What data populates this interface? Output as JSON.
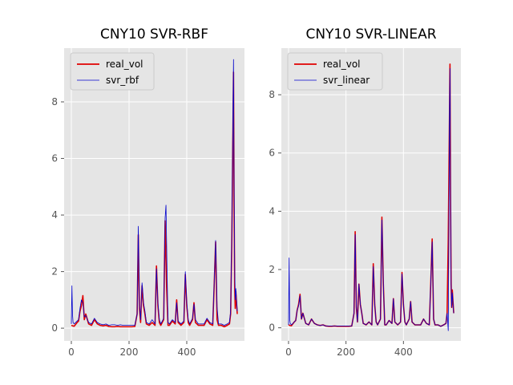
{
  "colors": {
    "background": "#e5e5e5",
    "grid": "#ffffff",
    "real_vol": "#e00000",
    "prediction": "#0000cc",
    "legend_bg": "#e5e5e5",
    "legend_border": "#cccccc",
    "tick_text": "#555555"
  },
  "chart_data": [
    {
      "type": "line",
      "title": "CNY10 SVR-RBF",
      "xlabel": "",
      "ylabel": "",
      "xlim": [
        -25,
        600
      ],
      "ylim": [
        -0.45,
        9.9
      ],
      "xticks": [
        0,
        200,
        400
      ],
      "yticks": [
        0,
        2,
        4,
        6,
        8
      ],
      "grid": true,
      "legend_position": "top-left",
      "series": [
        {
          "name": "real_vol",
          "color": "#e00000",
          "x": [
            0,
            5,
            10,
            20,
            25,
            30,
            35,
            40,
            45,
            50,
            60,
            70,
            80,
            90,
            100,
            110,
            120,
            130,
            140,
            150,
            160,
            170,
            180,
            190,
            200,
            210,
            220,
            228,
            232,
            236,
            240,
            245,
            250,
            255,
            260,
            270,
            280,
            290,
            295,
            300,
            305,
            310,
            320,
            325,
            330,
            335,
            340,
            350,
            360,
            365,
            370,
            380,
            390,
            395,
            400,
            405,
            410,
            420,
            425,
            430,
            440,
            450,
            460,
            470,
            480,
            490,
            495,
            500,
            505,
            510,
            520,
            530,
            540,
            548,
            552,
            556,
            560,
            562,
            564,
            566,
            568,
            570,
            575
          ],
          "y": [
            0.1,
            0.08,
            0.07,
            0.2,
            0.25,
            0.6,
            0.8,
            1.15,
            0.3,
            0.5,
            0.15,
            0.1,
            0.3,
            0.15,
            0.1,
            0.08,
            0.1,
            0.06,
            0.05,
            0.05,
            0.06,
            0.05,
            0.05,
            0.05,
            0.05,
            0.05,
            0.06,
            0.5,
            3.3,
            0.7,
            0.2,
            1.5,
            0.8,
            0.5,
            0.15,
            0.1,
            0.2,
            0.1,
            2.2,
            0.8,
            0.2,
            0.1,
            0.3,
            3.8,
            1.5,
            0.1,
            0.1,
            0.25,
            0.15,
            1.0,
            0.2,
            0.1,
            0.2,
            1.9,
            0.8,
            0.2,
            0.1,
            0.3,
            0.9,
            0.2,
            0.1,
            0.1,
            0.1,
            0.3,
            0.15,
            0.1,
            1.5,
            3.05,
            0.3,
            0.1,
            0.1,
            0.05,
            0.1,
            0.15,
            0.5,
            3.0,
            7.0,
            9.05,
            4.5,
            1.5,
            0.7,
            1.3,
            0.5
          ]
        },
        {
          "name": "svr_rbf",
          "color": "#0000cc",
          "x": [
            0,
            2,
            4,
            6,
            10,
            20,
            25,
            30,
            35,
            40,
            45,
            50,
            60,
            70,
            80,
            90,
            100,
            110,
            120,
            130,
            140,
            150,
            160,
            170,
            180,
            190,
            200,
            210,
            220,
            228,
            232,
            236,
            240,
            245,
            250,
            255,
            260,
            270,
            280,
            290,
            295,
            300,
            305,
            310,
            320,
            325,
            328,
            332,
            335,
            340,
            350,
            360,
            365,
            370,
            380,
            390,
            395,
            400,
            405,
            410,
            420,
            425,
            430,
            440,
            450,
            460,
            470,
            480,
            490,
            495,
            500,
            505,
            510,
            520,
            530,
            540,
            548,
            552,
            556,
            560,
            562,
            564,
            566,
            568,
            570,
            575
          ],
          "y": [
            0.15,
            1.5,
            0.5,
            0.2,
            0.15,
            0.25,
            0.3,
            0.7,
            1.0,
            0.9,
            0.4,
            0.45,
            0.2,
            0.15,
            0.35,
            0.2,
            0.15,
            0.12,
            0.15,
            0.1,
            0.12,
            0.12,
            0.1,
            0.12,
            0.1,
            0.1,
            0.1,
            0.1,
            0.1,
            0.5,
            3.6,
            0.8,
            0.3,
            1.6,
            0.9,
            0.6,
            0.2,
            0.15,
            0.3,
            0.15,
            2.1,
            0.9,
            0.3,
            0.15,
            0.35,
            3.9,
            4.35,
            1.8,
            0.2,
            0.15,
            0.3,
            0.2,
            0.9,
            0.25,
            0.15,
            0.25,
            2.0,
            0.9,
            0.3,
            0.15,
            0.35,
            0.85,
            0.3,
            0.15,
            0.15,
            0.15,
            0.35,
            0.2,
            0.15,
            1.6,
            3.1,
            0.75,
            0.15,
            0.15,
            0.1,
            0.15,
            0.2,
            0.6,
            3.2,
            7.5,
            9.5,
            5.0,
            2.2,
            1.0,
            1.4,
            0.6
          ]
        }
      ]
    },
    {
      "type": "line",
      "title": "CNY10 SVR-LINEAR",
      "xlabel": "",
      "ylabel": "",
      "xlim": [
        -25,
        600
      ],
      "ylim": [
        -0.45,
        9.6
      ],
      "xticks": [
        0,
        200,
        400
      ],
      "yticks": [
        0,
        2,
        4,
        6,
        8
      ],
      "grid": true,
      "legend_position": "top-left",
      "series": [
        {
          "name": "real_vol",
          "color": "#e00000",
          "x": [
            0,
            5,
            10,
            20,
            25,
            30,
            35,
            40,
            45,
            50,
            60,
            70,
            80,
            90,
            100,
            110,
            120,
            130,
            140,
            150,
            160,
            170,
            180,
            190,
            200,
            210,
            220,
            228,
            232,
            236,
            240,
            245,
            250,
            255,
            260,
            270,
            280,
            290,
            295,
            300,
            305,
            310,
            320,
            325,
            330,
            335,
            340,
            350,
            360,
            365,
            370,
            380,
            390,
            395,
            400,
            405,
            410,
            420,
            425,
            430,
            440,
            450,
            460,
            470,
            480,
            490,
            495,
            500,
            505,
            510,
            520,
            530,
            540,
            548,
            552,
            556,
            560,
            562,
            564,
            566,
            568,
            570,
            575
          ],
          "y": [
            0.1,
            0.08,
            0.07,
            0.2,
            0.25,
            0.6,
            0.8,
            1.15,
            0.3,
            0.5,
            0.15,
            0.1,
            0.3,
            0.15,
            0.1,
            0.08,
            0.1,
            0.06,
            0.05,
            0.05,
            0.06,
            0.05,
            0.05,
            0.05,
            0.05,
            0.05,
            0.06,
            0.5,
            3.3,
            0.7,
            0.2,
            1.5,
            0.8,
            0.5,
            0.15,
            0.1,
            0.2,
            0.1,
            2.2,
            0.8,
            0.2,
            0.1,
            0.3,
            3.8,
            1.5,
            0.1,
            0.1,
            0.25,
            0.15,
            1.0,
            0.2,
            0.1,
            0.2,
            1.9,
            0.8,
            0.2,
            0.1,
            0.3,
            0.9,
            0.2,
            0.1,
            0.1,
            0.1,
            0.3,
            0.15,
            0.1,
            1.5,
            3.05,
            0.3,
            0.1,
            0.1,
            0.05,
            0.1,
            0.15,
            0.5,
            3.0,
            7.0,
            9.05,
            4.5,
            1.5,
            0.7,
            1.3,
            0.5
          ]
        },
        {
          "name": "svr_linear",
          "color": "#0000cc",
          "x": [
            0,
            2,
            4,
            6,
            10,
            20,
            25,
            30,
            35,
            40,
            45,
            50,
            60,
            70,
            80,
            90,
            100,
            110,
            120,
            130,
            140,
            150,
            160,
            170,
            180,
            190,
            200,
            210,
            220,
            228,
            232,
            236,
            240,
            245,
            250,
            255,
            260,
            270,
            280,
            290,
            295,
            300,
            305,
            310,
            320,
            325,
            330,
            335,
            340,
            350,
            360,
            365,
            370,
            380,
            390,
            395,
            400,
            405,
            410,
            420,
            425,
            430,
            440,
            450,
            460,
            470,
            480,
            490,
            495,
            500,
            505,
            510,
            520,
            530,
            540,
            548,
            552,
            556,
            558,
            560,
            562,
            564,
            566,
            568,
            570,
            575
          ],
          "y": [
            0.1,
            2.4,
            0.3,
            0.15,
            0.1,
            0.2,
            0.25,
            0.6,
            0.75,
            1.1,
            0.3,
            0.5,
            0.15,
            0.1,
            0.3,
            0.15,
            0.1,
            0.08,
            0.1,
            0.06,
            0.06,
            0.06,
            0.06,
            0.06,
            0.06,
            0.06,
            0.06,
            0.06,
            0.06,
            0.5,
            3.2,
            0.7,
            0.2,
            1.5,
            0.8,
            0.5,
            0.15,
            0.1,
            0.2,
            0.1,
            2.1,
            0.8,
            0.2,
            0.1,
            0.3,
            3.7,
            1.5,
            0.1,
            0.1,
            0.25,
            0.15,
            1.0,
            0.2,
            0.1,
            0.2,
            1.85,
            0.8,
            0.2,
            0.1,
            0.3,
            0.9,
            0.2,
            0.1,
            0.1,
            0.1,
            0.3,
            0.15,
            0.1,
            1.5,
            2.95,
            0.3,
            0.1,
            0.1,
            0.05,
            0.1,
            0.15,
            0.5,
            -0.1,
            3.0,
            6.9,
            8.9,
            4.4,
            1.5,
            0.7,
            1.2,
            0.5
          ]
        }
      ]
    }
  ]
}
